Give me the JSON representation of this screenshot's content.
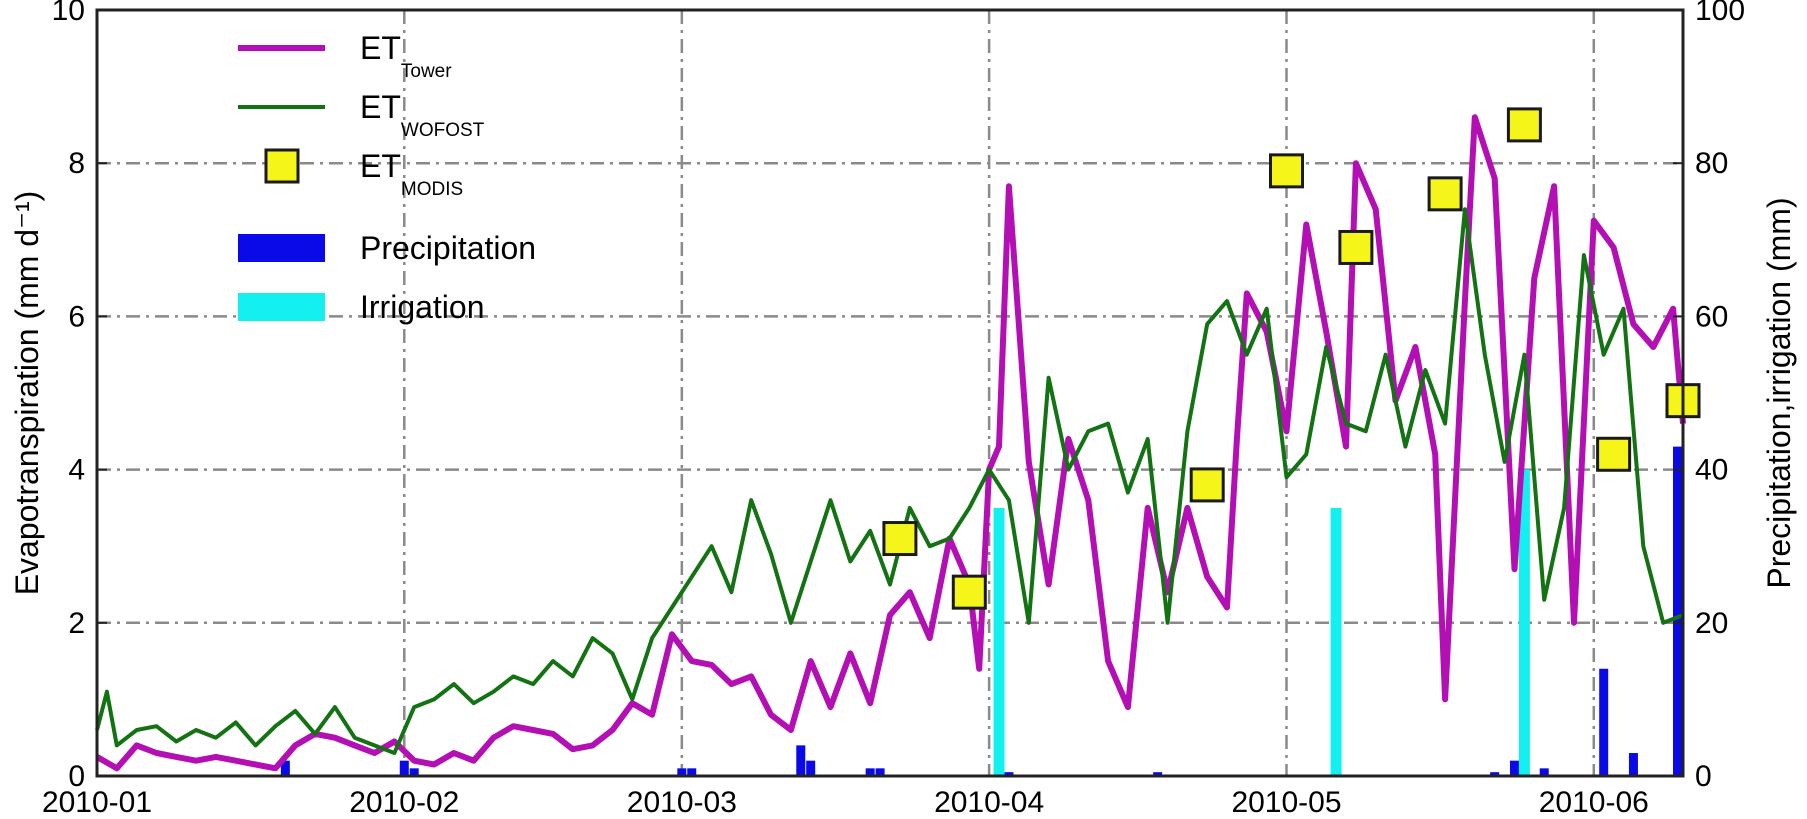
{
  "chart_data": {
    "type": "line",
    "title": "",
    "xlabel": "",
    "ylabel": "Evapotranspiration (mm d⁻¹)",
    "y2label": "Precipitation,irrigation (mm)",
    "xlim": [
      "2010-01-01",
      "2010-06-10"
    ],
    "ylim": [
      0,
      10
    ],
    "y2lim": [
      0,
      100
    ],
    "x_ticks": [
      "2010-01",
      "2010-02",
      "2010-03",
      "2010-04",
      "2010-05",
      "2010-06"
    ],
    "y_ticks": [
      "0",
      "2",
      "4",
      "6",
      "8",
      "10"
    ],
    "y2_ticks": [
      "0",
      "20",
      "40",
      "60",
      "80",
      "100"
    ],
    "grid": true,
    "legend_position": "top-left",
    "legend": [
      {
        "main": "ET",
        "sub": "Tower",
        "kind": "line",
        "color": "#b40fb4"
      },
      {
        "main": "ET",
        "sub": "WOFOST",
        "kind": "line",
        "color": "#137313"
      },
      {
        "main": "ET",
        "sub": "MODIS",
        "kind": "square",
        "color": "#f5f51a"
      },
      {
        "main": "Precipitation",
        "sub": "",
        "kind": "bar",
        "color": "#0a0ae8"
      },
      {
        "main": "Irrigation",
        "sub": "",
        "kind": "bar",
        "color": "#14f0f0"
      }
    ],
    "series": [
      {
        "name": "ET Tower",
        "axis": "left",
        "type": "line",
        "color": "#b40fb4",
        "x": [
          "2010-01-01",
          "2010-01-03",
          "2010-01-05",
          "2010-01-07",
          "2010-01-09",
          "2010-01-11",
          "2010-01-13",
          "2010-01-15",
          "2010-01-17",
          "2010-01-19",
          "2010-01-21",
          "2010-01-23",
          "2010-01-25",
          "2010-01-27",
          "2010-01-29",
          "2010-01-31",
          "2010-02-02",
          "2010-02-04",
          "2010-02-06",
          "2010-02-08",
          "2010-02-10",
          "2010-02-12",
          "2010-02-14",
          "2010-02-16",
          "2010-02-18",
          "2010-02-20",
          "2010-02-22",
          "2010-02-24",
          "2010-02-26",
          "2010-02-28",
          "2010-03-02",
          "2010-03-04",
          "2010-03-06",
          "2010-03-08",
          "2010-03-10",
          "2010-03-12",
          "2010-03-14",
          "2010-03-16",
          "2010-03-18",
          "2010-03-20",
          "2010-03-22",
          "2010-03-24",
          "2010-03-26",
          "2010-03-28",
          "2010-03-30",
          "2010-03-31",
          "2010-04-01",
          "2010-04-02",
          "2010-04-03",
          "2010-04-05",
          "2010-04-07",
          "2010-04-09",
          "2010-04-11",
          "2010-04-13",
          "2010-04-15",
          "2010-04-17",
          "2010-04-19",
          "2010-04-21",
          "2010-04-23",
          "2010-04-25",
          "2010-04-26",
          "2010-04-27",
          "2010-04-29",
          "2010-05-01",
          "2010-05-03",
          "2010-05-05",
          "2010-05-07",
          "2010-05-08",
          "2010-05-10",
          "2010-05-12",
          "2010-05-14",
          "2010-05-16",
          "2010-05-17",
          "2010-05-19",
          "2010-05-20",
          "2010-05-22",
          "2010-05-24",
          "2010-05-26",
          "2010-05-28",
          "2010-05-30",
          "2010-06-01",
          "2010-06-03",
          "2010-06-05",
          "2010-06-07",
          "2010-06-09",
          "2010-06-10"
        ],
        "y": [
          0.25,
          0.1,
          0.4,
          0.3,
          0.25,
          0.2,
          0.25,
          0.2,
          0.15,
          0.1,
          0.4,
          0.55,
          0.5,
          0.4,
          0.3,
          0.45,
          0.2,
          0.15,
          0.3,
          0.2,
          0.5,
          0.65,
          0.6,
          0.55,
          0.35,
          0.4,
          0.6,
          0.95,
          0.8,
          1.85,
          1.5,
          1.45,
          1.2,
          1.3,
          0.8,
          0.6,
          1.5,
          0.9,
          1.6,
          0.95,
          2.1,
          2.4,
          1.8,
          3.1,
          2.5,
          1.4,
          4.0,
          4.3,
          7.7,
          4.1,
          2.5,
          4.4,
          3.6,
          1.5,
          0.9,
          3.5,
          2.4,
          3.5,
          2.6,
          2.2,
          4.4,
          6.3,
          5.8,
          4.5,
          7.2,
          5.8,
          4.3,
          8.0,
          7.4,
          4.9,
          5.6,
          4.2,
          1.0,
          6.2,
          8.6,
          7.8,
          2.7,
          6.5,
          7.7,
          2.0,
          7.25,
          6.9,
          5.9,
          5.6,
          6.1,
          4.6
        ]
      },
      {
        "name": "ET WOFOST",
        "axis": "left",
        "type": "line",
        "color": "#137313",
        "x": [
          "2010-01-01",
          "2010-01-02",
          "2010-01-03",
          "2010-01-05",
          "2010-01-07",
          "2010-01-09",
          "2010-01-11",
          "2010-01-13",
          "2010-01-15",
          "2010-01-17",
          "2010-01-19",
          "2010-01-21",
          "2010-01-23",
          "2010-01-25",
          "2010-01-27",
          "2010-01-29",
          "2010-01-31",
          "2010-02-02",
          "2010-02-04",
          "2010-02-06",
          "2010-02-08",
          "2010-02-10",
          "2010-02-12",
          "2010-02-14",
          "2010-02-16",
          "2010-02-18",
          "2010-02-20",
          "2010-02-22",
          "2010-02-24",
          "2010-02-26",
          "2010-02-28",
          "2010-03-02",
          "2010-03-04",
          "2010-03-06",
          "2010-03-08",
          "2010-03-10",
          "2010-03-12",
          "2010-03-14",
          "2010-03-16",
          "2010-03-18",
          "2010-03-20",
          "2010-03-22",
          "2010-03-24",
          "2010-03-26",
          "2010-03-28",
          "2010-03-30",
          "2010-04-01",
          "2010-04-03",
          "2010-04-05",
          "2010-04-07",
          "2010-04-09",
          "2010-04-11",
          "2010-04-13",
          "2010-04-15",
          "2010-04-17",
          "2010-04-19",
          "2010-04-21",
          "2010-04-23",
          "2010-04-25",
          "2010-04-27",
          "2010-04-29",
          "2010-05-01",
          "2010-05-03",
          "2010-05-05",
          "2010-05-07",
          "2010-05-09",
          "2010-05-11",
          "2010-05-13",
          "2010-05-15",
          "2010-05-17",
          "2010-05-19",
          "2010-05-21",
          "2010-05-23",
          "2010-05-25",
          "2010-05-27",
          "2010-05-29",
          "2010-05-31",
          "2010-06-02",
          "2010-06-04",
          "2010-06-06",
          "2010-06-08",
          "2010-06-10"
        ],
        "y": [
          0.6,
          1.1,
          0.4,
          0.6,
          0.65,
          0.45,
          0.6,
          0.5,
          0.7,
          0.4,
          0.65,
          0.85,
          0.55,
          0.9,
          0.5,
          0.4,
          0.3,
          0.9,
          1.0,
          1.2,
          0.95,
          1.1,
          1.3,
          1.2,
          1.5,
          1.3,
          1.8,
          1.6,
          1.0,
          1.8,
          2.2,
          2.6,
          3.0,
          2.4,
          3.6,
          2.9,
          2.0,
          2.8,
          3.6,
          2.8,
          3.2,
          2.5,
          3.5,
          3.0,
          3.1,
          3.5,
          4.0,
          3.6,
          2.0,
          5.2,
          4.0,
          4.5,
          4.6,
          3.7,
          4.4,
          2.0,
          4.5,
          5.9,
          6.2,
          5.5,
          6.1,
          3.9,
          4.2,
          5.6,
          4.6,
          4.5,
          5.5,
          4.3,
          5.3,
          4.6,
          7.4,
          5.5,
          4.1,
          5.5,
          2.3,
          3.5,
          6.8,
          5.5,
          6.1,
          3.0,
          2.0,
          2.1
        ]
      },
      {
        "name": "ET MODIS",
        "axis": "left",
        "type": "scatter",
        "color": "#f5f51a",
        "x": [
          "2010-03-23",
          "2010-03-30",
          "2010-04-23",
          "2010-05-01",
          "2010-05-08",
          "2010-05-17",
          "2010-05-25",
          "2010-06-03",
          "2010-06-10"
        ],
        "y": [
          3.1,
          2.4,
          3.8,
          7.9,
          6.9,
          7.6,
          8.5,
          4.2,
          4.9
        ]
      },
      {
        "name": "Precipitation",
        "axis": "right",
        "type": "bar",
        "color": "#0a0ae8",
        "x": [
          "2010-01-20",
          "2010-02-01",
          "2010-02-02",
          "2010-03-01",
          "2010-03-02",
          "2010-03-13",
          "2010-03-14",
          "2010-03-20",
          "2010-03-21",
          "2010-04-03",
          "2010-04-18",
          "2010-05-22",
          "2010-05-24",
          "2010-05-25",
          "2010-05-27",
          "2010-06-02",
          "2010-06-05",
          "2010-06-10"
        ],
        "y": [
          2,
          2,
          1,
          1,
          1,
          4,
          2,
          1,
          1,
          0.5,
          0.5,
          0.5,
          2,
          2,
          1,
          14,
          3,
          43
        ]
      },
      {
        "name": "Irrigation",
        "axis": "right",
        "type": "bar",
        "color": "#14f0f0",
        "x": [
          "2010-04-02",
          "2010-05-06",
          "2010-05-25"
        ],
        "y": [
          35,
          35,
          40
        ]
      }
    ]
  }
}
